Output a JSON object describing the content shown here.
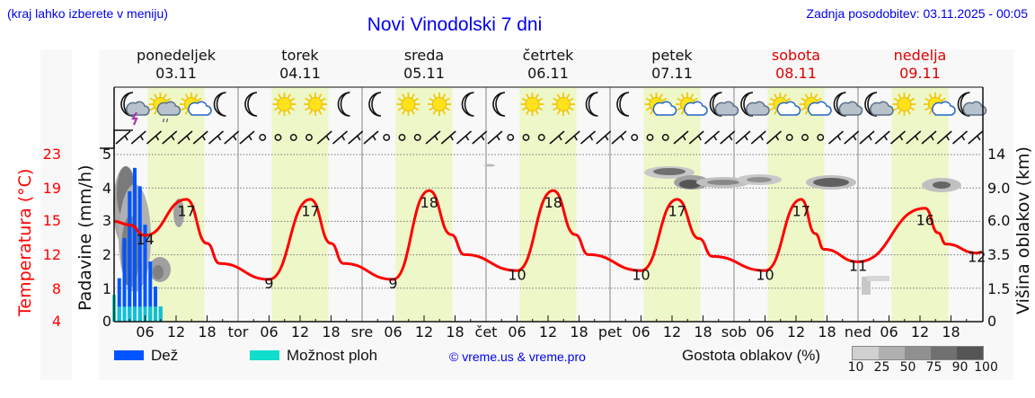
{
  "header": {
    "region_note": "(kraj lahko izberete v meniju)",
    "title": "Novi Vinodolski 7 dni",
    "updated": "Zadnja posodobitev: 03.11.2025 - 00:05"
  },
  "days": [
    {
      "name": "ponedeljek",
      "date": "03.11",
      "weekend": false
    },
    {
      "name": "torek",
      "date": "04.11",
      "weekend": false
    },
    {
      "name": "sreda",
      "date": "05.11",
      "weekend": false
    },
    {
      "name": "četrtek",
      "date": "06.11",
      "weekend": false
    },
    {
      "name": "petek",
      "date": "07.11",
      "weekend": false
    },
    {
      "name": "sobota",
      "date": "08.11",
      "weekend": true
    },
    {
      "name": "nedelja",
      "date": "09.11",
      "weekend": true
    }
  ],
  "weather_icons": [
    "moon-cloud-thunder",
    "sun-cloud-rain",
    "sun-cloud",
    "moon",
    "moon",
    "sun",
    "sun",
    "moon",
    "moon",
    "sun",
    "sun",
    "moon",
    "moon",
    "sun",
    "sun",
    "moon",
    "moon",
    "sun-cloud",
    "sun-cloud",
    "moon-cloud",
    "moon-cloud",
    "sun-cloud",
    "sun-cloud",
    "moon-cloud",
    "moon-cloud",
    "sun",
    "sun-cloud",
    "moon-cloud"
  ],
  "axes": {
    "left_temp_title": "Temperatura (°C)",
    "left_temp_ticks": [
      "23",
      "19",
      "15",
      "12",
      "8",
      "4"
    ],
    "left_precip_title": "Padavine (mm/h)",
    "left_precip_ticks": [
      "5",
      "4",
      "3",
      "2",
      "1",
      "0"
    ],
    "right_title": "Višina oblakov (km)",
    "right_ticks": [
      "14",
      "9.0",
      "6.0",
      "3.5",
      "1.5",
      "0"
    ],
    "x_ticks": [
      "06",
      "12",
      "18",
      "tor",
      "06",
      "12",
      "18",
      "sre",
      "06",
      "12",
      "18",
      "čet",
      "06",
      "12",
      "18",
      "pet",
      "06",
      "12",
      "18",
      "sob",
      "06",
      "12",
      "18",
      "ned",
      "06",
      "12",
      "18"
    ]
  },
  "legend": {
    "rain_label": "Dež",
    "rain_color": "#0055ff",
    "showers_label": "Možnost ploh",
    "showers_color": "#11ddcc",
    "credit": "© vreme.us & vreme.pro",
    "cloud_density_label": "Gostota oblakov (%)",
    "cloud_density_ticks": [
      "10",
      "25",
      "50",
      "75",
      "90",
      "100"
    ],
    "cloud_density_colors": [
      "#d0d0d0",
      "#b0b0b0",
      "#909090",
      "#707070",
      "#555555"
    ]
  },
  "colors": {
    "temperature_line": "#ff0000",
    "daylight_band": "#eef7c8",
    "title_blue": "#0000ee",
    "weekend_red": "#dd0000"
  },
  "chart_data": {
    "type": "line",
    "title": "Novi Vinodolski 7 dni",
    "xlabel": "",
    "ylabel": "Temperatura (°C)",
    "ylim": [
      4,
      23
    ],
    "temperature_labels": [
      {
        "x": "03.11 06",
        "value": 14
      },
      {
        "x": "03.11 14",
        "value": 17
      },
      {
        "x": "04.11 06",
        "value": 9
      },
      {
        "x": "04.11 14",
        "value": 17
      },
      {
        "x": "05.11 06",
        "value": 9
      },
      {
        "x": "05.11 13",
        "value": 18
      },
      {
        "x": "06.11 06",
        "value": 10
      },
      {
        "x": "06.11 13",
        "value": 18
      },
      {
        "x": "07.11 06",
        "value": 10
      },
      {
        "x": "07.11 13",
        "value": 17
      },
      {
        "x": "08.11 06",
        "value": 10
      },
      {
        "x": "08.11 13",
        "value": 17
      },
      {
        "x": "09.11 00",
        "value": 11
      },
      {
        "x": "09.11 13",
        "value": 16
      },
      {
        "x": "09.11 23",
        "value": 12
      }
    ],
    "precipitation_mm_h": {
      "ylim": [
        0,
        5
      ],
      "rain": [
        {
          "x": "03.11 01",
          "value": 1.3
        },
        {
          "x": "03.11 02",
          "value": 2.5
        },
        {
          "x": "03.11 03",
          "value": 3.9
        },
        {
          "x": "03.11 04",
          "value": 4.6
        },
        {
          "x": "03.11 05",
          "value": 4.05
        },
        {
          "x": "03.11 06",
          "value": 2.9
        },
        {
          "x": "03.11 07",
          "value": 1.8
        },
        {
          "x": "03.11 08",
          "value": 1.05
        },
        {
          "x": "03.11 09",
          "value": 0.45
        }
      ],
      "showers": [
        {
          "x": "03.11 00",
          "value": 0.8
        },
        {
          "x": "03.11 03",
          "value": 1.0
        },
        {
          "x": "03.11 04",
          "value": 4.6
        }
      ]
    },
    "cloud_height_km_ticks": [
      0,
      1.5,
      3.5,
      6.0,
      9.0,
      14
    ]
  }
}
